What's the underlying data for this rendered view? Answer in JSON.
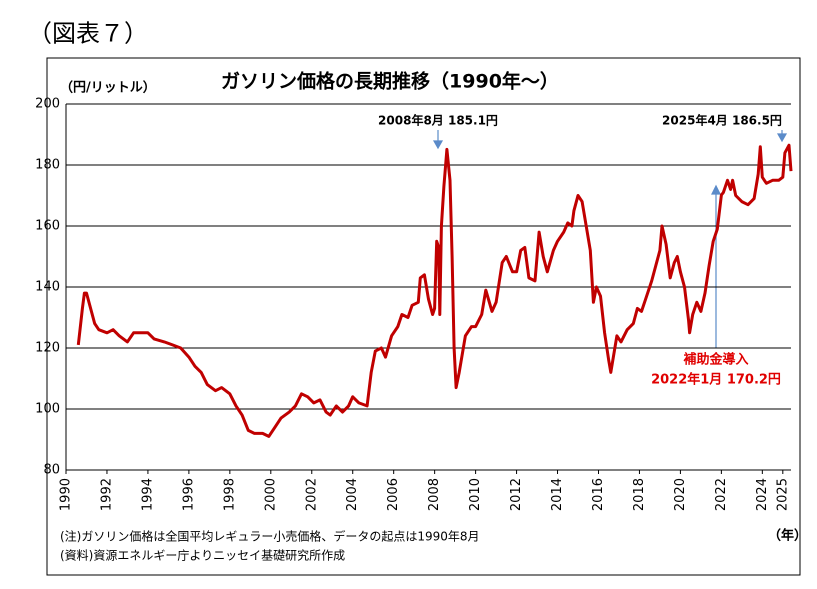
{
  "header": "（図表７）",
  "chart_data": {
    "type": "line",
    "title": "ガソリン価格の長期推移（1990年～）",
    "y_label": "（円/リットル）",
    "x_label": "（年）",
    "annotations": [
      "2008年8月 185.1円",
      "2025年4月 186.5円",
      "補助金導入",
      "2022年1月 170.2円"
    ],
    "notes": [
      "(注)ガソリン価格は全国平均レギュラー小売価格、データの起点は1990年8月",
      "(資料)資源エネルギー庁よりニッセイ基礎研究所作成"
    ],
    "color": "#c00000",
    "x": [
      1990.6,
      1990.8,
      1990.9,
      1991.0,
      1991.2,
      1991.4,
      1991.6,
      1992.0,
      1992.3,
      1992.6,
      1993.0,
      1993.3,
      1993.6,
      1994.0,
      1994.3,
      1994.8,
      1995.2,
      1995.6,
      1996.0,
      1996.3,
      1996.6,
      1996.9,
      1997.3,
      1997.6,
      1998.0,
      1998.3,
      1998.6,
      1998.9,
      1999.2,
      1999.6,
      1999.9,
      2000.2,
      2000.5,
      2000.9,
      2001.2,
      2001.5,
      2001.8,
      2002.1,
      2002.4,
      2002.7,
      2002.9,
      2003.2,
      2003.5,
      2003.8,
      2004.0,
      2004.3,
      2004.7,
      2004.9,
      2005.1,
      2005.4,
      2005.6,
      2005.9,
      2006.2,
      2006.4,
      2006.7,
      2006.9,
      2007.2,
      2007.3,
      2007.5,
      2007.7,
      2007.9,
      2008.0,
      2008.1,
      2008.2,
      2008.25,
      2008.33,
      2008.45,
      2008.6,
      2008.75,
      2008.85,
      2008.95,
      2009.05,
      2009.2,
      2009.5,
      2009.8,
      2010.0,
      2010.3,
      2010.5,
      2010.8,
      2011.0,
      2011.3,
      2011.5,
      2011.8,
      2012.0,
      2012.2,
      2012.4,
      2012.6,
      2012.9,
      2013.1,
      2013.3,
      2013.5,
      2013.8,
      2014.0,
      2014.3,
      2014.5,
      2014.7,
      2014.8,
      2015.0,
      2015.2,
      2015.4,
      2015.6,
      2015.75,
      2015.9,
      2016.1,
      2016.3,
      2016.5,
      2016.6,
      2016.9,
      2017.1,
      2017.4,
      2017.7,
      2017.9,
      2018.1,
      2018.3,
      2018.6,
      2018.8,
      2019.0,
      2019.1,
      2019.3,
      2019.5,
      2019.7,
      2019.85,
      2020.0,
      2020.2,
      2020.4,
      2020.45,
      2020.6,
      2020.8,
      2021.0,
      2021.2,
      2021.4,
      2021.6,
      2021.8,
      2022.0,
      2022.1,
      2022.3,
      2022.45,
      2022.55,
      2022.7,
      2023.0,
      2023.3,
      2023.6,
      2023.8,
      2023.9,
      2024.0,
      2024.2,
      2024.5,
      2024.8,
      2025.0,
      2025.1,
      2025.3,
      2025.4
    ],
    "values": [
      121,
      133,
      138,
      138,
      133,
      128,
      126,
      125,
      126,
      124,
      122,
      125,
      125,
      125,
      123,
      122,
      121,
      120,
      117,
      114,
      112,
      108,
      106,
      107,
      105,
      101,
      98,
      93,
      92,
      92,
      91,
      94,
      97,
      99,
      101,
      105,
      104,
      102,
      103,
      99,
      98,
      101,
      99,
      101,
      104,
      102,
      101,
      112,
      119,
      120,
      117,
      124,
      127,
      131,
      130,
      134,
      135,
      143,
      144,
      136,
      131,
      133,
      155,
      153,
      131,
      160,
      173,
      185.1,
      175,
      150,
      120,
      107,
      112,
      124,
      127,
      127,
      131,
      139,
      132,
      135,
      148,
      150,
      145,
      145,
      152,
      153,
      143,
      142,
      158,
      150,
      145,
      152,
      155,
      158,
      161,
      160,
      165,
      170,
      168,
      160,
      152,
      135,
      140,
      137,
      125,
      116,
      112,
      124,
      122,
      126,
      128,
      133,
      132,
      136,
      142,
      147,
      152,
      160,
      154,
      143,
      148,
      150,
      145,
      140,
      129,
      125,
      131,
      135,
      132,
      138,
      147,
      155,
      159,
      170.2,
      171,
      175,
      172,
      175,
      170,
      168,
      167,
      169,
      177,
      186,
      176,
      174,
      175,
      175,
      176,
      184,
      186.5,
      178
    ],
    "xlim": [
      1990,
      2025.4
    ],
    "xticks": [
      1990,
      1992,
      1994,
      1996,
      1998,
      2000,
      2002,
      2004,
      2006,
      2008,
      2010,
      2012,
      2014,
      2016,
      2018,
      2020,
      2022,
      2024,
      2025
    ],
    "ylim": [
      80,
      200
    ],
    "yticks": [
      80,
      100,
      120,
      140,
      160,
      180,
      200
    ],
    "grid": true
  }
}
